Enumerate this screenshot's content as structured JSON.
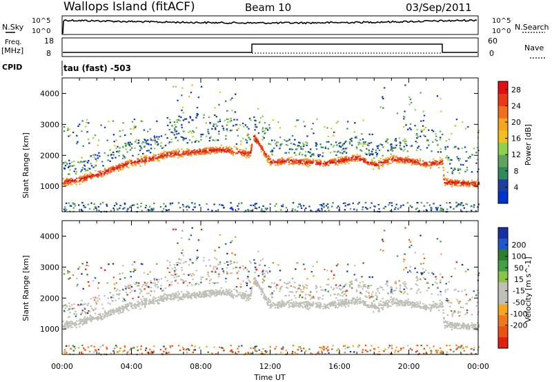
{
  "header": {
    "station": "Wallops Island (fitACF)",
    "beam": "Beam 10",
    "date": "03/Sep/2011"
  },
  "aux_panels": {
    "nsky_label": "N.Sky",
    "nsky_ticks": [
      "10^5",
      "10^0"
    ],
    "nsearch_label": "N.Search",
    "nsearch_ticks": [
      "10^5",
      "10^0"
    ],
    "freq_label_1": "Freq.",
    "freq_label_2": "[MHz]",
    "freq_ticks": [
      "18",
      "8"
    ],
    "nave_label": "Nave",
    "nave_ticks": [
      "60",
      "0"
    ],
    "cpid_label": "CPID",
    "cpid_value": "tau (fast) -503"
  },
  "colors": {
    "power": [
      "#0033cc",
      "#1f3fa0",
      "#2e8b57",
      "#5fa35f",
      "#8fd14f",
      "#f0c020",
      "#f5a623",
      "#f07020",
      "#e83a14",
      "#e01010"
    ],
    "velocity": [
      "#1a2fa0",
      "#1f58c8",
      "#2e7d32",
      "#43a047",
      "#8bc34a",
      "#c0c0b8",
      "#c0c0b8",
      "#f5a623",
      "#f07820",
      "#e85414",
      "#e02010"
    ]
  },
  "chart_data": [
    {
      "type": "heatmap",
      "title": "Power",
      "xlabel": "Time UT",
      "ylabel": "Slant Range [km]",
      "x_ticks": [
        "00:00",
        "04:00",
        "08:00",
        "12:00",
        "16:00",
        "20:00",
        "00:00"
      ],
      "y_ticks": [
        "1000",
        "2000",
        "3000",
        "4000"
      ],
      "ylim": [
        180,
        4500
      ],
      "colorbar": {
        "label": "Power [dB]",
        "ticks": [
          "4",
          "8",
          "12",
          "16",
          "20",
          "24",
          "28"
        ],
        "range": [
          0,
          30
        ]
      },
      "ground_scatter_band_km": [
        [
          0,
          1150
        ],
        [
          1,
          1250
        ],
        [
          2,
          1400
        ],
        [
          3,
          1600
        ],
        [
          4,
          1800
        ],
        [
          5,
          1900
        ],
        [
          6,
          2050
        ],
        [
          7,
          2100
        ],
        [
          8,
          2150
        ],
        [
          9,
          2200
        ],
        [
          10,
          2150
        ],
        [
          10.8,
          2050
        ],
        [
          11,
          2650
        ],
        [
          12,
          1800
        ],
        [
          13,
          1850
        ],
        [
          14,
          1800
        ],
        [
          15,
          1750
        ],
        [
          16,
          1850
        ],
        [
          17,
          1950
        ],
        [
          18,
          1700
        ],
        [
          19,
          1900
        ],
        [
          20,
          1850
        ],
        [
          21,
          1750
        ],
        [
          21.9,
          1800
        ],
        [
          22,
          1150
        ],
        [
          24,
          1100
        ]
      ]
    },
    {
      "type": "heatmap",
      "title": "Velocity",
      "xlabel": "Time UT",
      "ylabel": "Slant Range [km]",
      "x_ticks": [
        "00:00",
        "04:00",
        "08:00",
        "12:00",
        "16:00",
        "20:00",
        "00:00"
      ],
      "y_ticks": [
        "1000",
        "2000",
        "3000",
        "4000"
      ],
      "ylim": [
        180,
        4500
      ],
      "colorbar": {
        "label": "Velocity [m s^-1]",
        "ticks": [
          "200",
          "100",
          "50",
          "15",
          "-15",
          "-50",
          "-100",
          "-200"
        ],
        "range": [
          -250,
          250
        ]
      }
    }
  ]
}
